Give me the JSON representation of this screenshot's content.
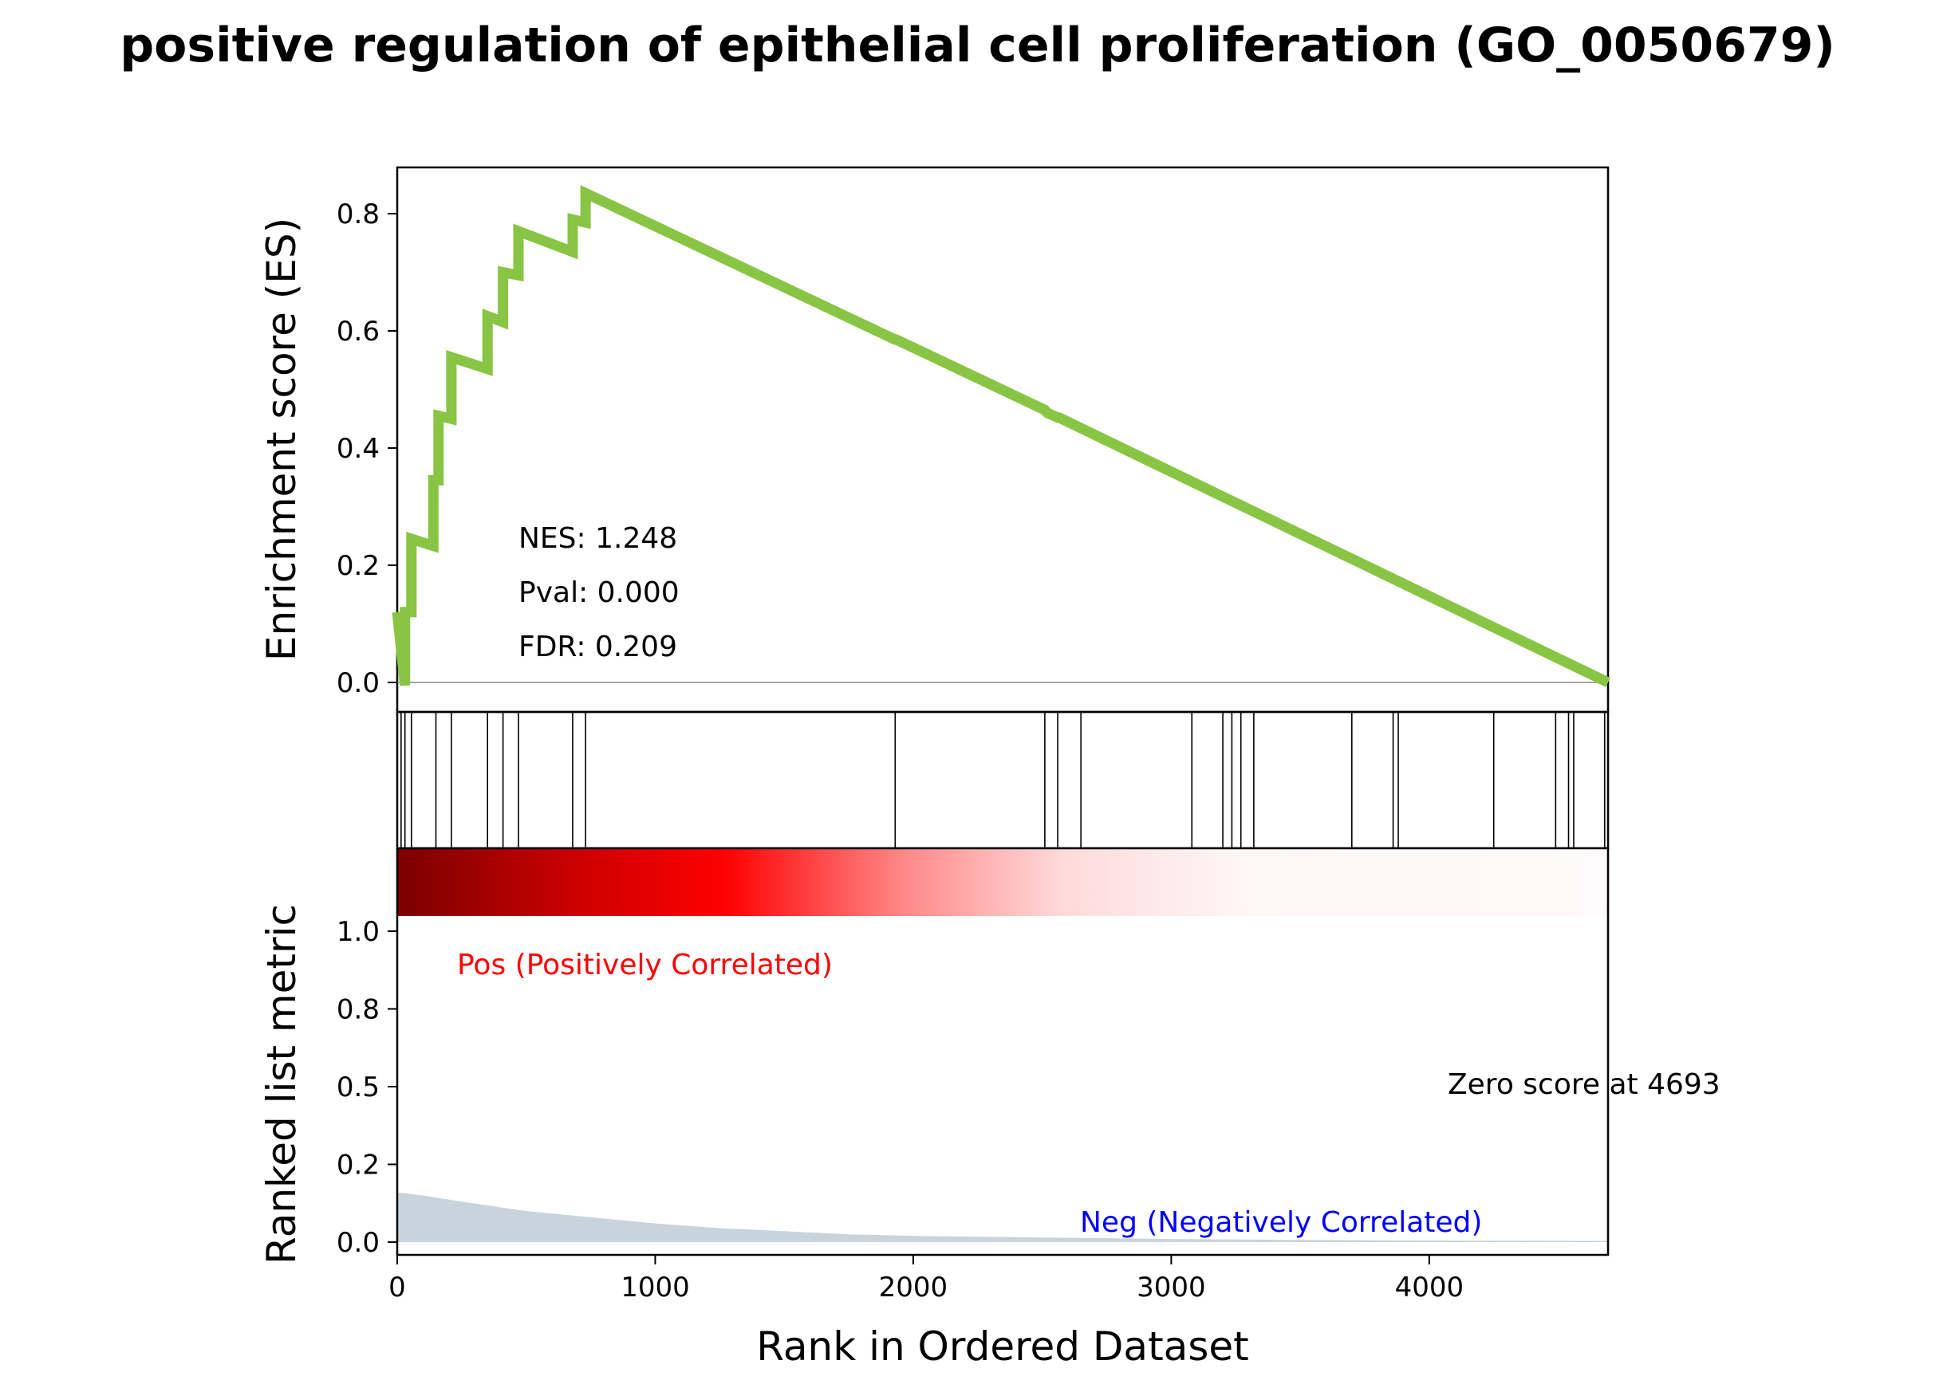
{
  "title": "positive regulation of epithelial cell proliferation (GO_0050679)",
  "chart_data": [
    {
      "type": "line",
      "panel": "enrichment",
      "ylabel": "Enrichment score (ES)",
      "xlim": [
        0,
        4693
      ],
      "ylim": [
        -0.05,
        0.88
      ],
      "yticks": [
        "0.0",
        "0.2",
        "0.4",
        "0.6",
        "0.8"
      ],
      "ytick_values": [
        0,
        0.2,
        0.4,
        0.6,
        0.8
      ],
      "series": [
        {
          "color": "#88C544",
          "x": [
            0,
            30,
            30,
            55,
            55,
            140,
            140,
            160,
            160,
            210,
            210,
            350,
            350,
            410,
            410,
            470,
            470,
            680,
            680,
            730,
            730,
            1930,
            1935,
            2510,
            2520,
            2560,
            2565,
            4693
          ],
          "y": [
            0.12,
            -0.005,
            0.12,
            0.12,
            0.245,
            0.233,
            0.345,
            0.345,
            0.455,
            0.45,
            0.555,
            0.535,
            0.625,
            0.615,
            0.7,
            0.695,
            0.77,
            0.735,
            0.79,
            0.785,
            0.835,
            0.585,
            0.585,
            0.465,
            0.46,
            0.452,
            0.452,
            0.0
          ]
        }
      ],
      "annotations": [
        "NES: 1.248",
        "Pval: 0.000",
        "FDR: 0.209"
      ]
    },
    {
      "type": "bar",
      "panel": "hits",
      "xlim": [
        0,
        4693
      ],
      "hits": [
        15,
        30,
        55,
        150,
        210,
        350,
        410,
        470,
        680,
        730,
        1930,
        2510,
        2560,
        2650,
        3080,
        3200,
        3235,
        3270,
        3320,
        3700,
        3860,
        3880,
        4250,
        4490,
        4540,
        4560,
        4680
      ]
    },
    {
      "type": "area",
      "panel": "ranked_metric",
      "ylabel": "Ranked list metric",
      "xlabel": "Rank in Ordered Dataset",
      "xlim": [
        0,
        4693
      ],
      "ylim": [
        -0.05,
        1.25
      ],
      "xticks": [
        "0",
        "1000",
        "2000",
        "3000",
        "4000"
      ],
      "xtick_values": [
        0,
        1000,
        2000,
        3000,
        4000
      ],
      "yticks": [
        "0.0",
        "0.2",
        "0.5",
        "0.8",
        "1.0"
      ],
      "ytick_values": [
        0,
        0.25,
        0.5,
        0.75,
        1.0
      ],
      "fill_color": "#C9D3DC",
      "x": [
        0,
        100,
        250,
        500,
        750,
        1000,
        1250,
        1500,
        1750,
        2000,
        2500,
        3000,
        3500,
        4000,
        4693
      ],
      "y": [
        0.16,
        0.15,
        0.13,
        0.1,
        0.08,
        0.06,
        0.045,
        0.035,
        0.025,
        0.02,
        0.015,
        0.01,
        0.007,
        0.005,
        0.004
      ],
      "pos_label": "Pos (Positively Correlated)",
      "neg_label": "Neg (Negatively Correlated)",
      "pos_color": "#FF0000",
      "neg_color": "#0000FF",
      "zero_score_text": "Zero score at 4693"
    }
  ]
}
